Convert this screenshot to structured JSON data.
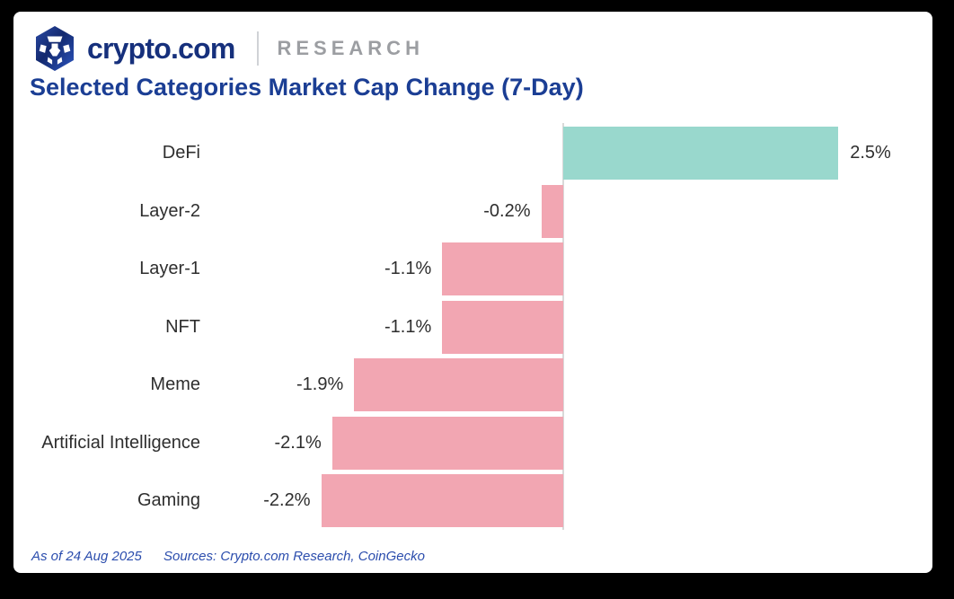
{
  "header": {
    "wordmark": "crypto.com",
    "division": "RESEARCH"
  },
  "title": "Selected Categories Market Cap Change (7-Day)",
  "footer": {
    "as_of": "As of 24 Aug 2025",
    "sources": "Sources: Crypto.com Research, CoinGecko"
  },
  "colors": {
    "frame_black": "#000000",
    "card_white": "#ffffff",
    "brand_navy": "#16307c",
    "title_blue": "#1b3e94",
    "research_gray": "#9c9ea2",
    "footer_blue": "#2b4dad",
    "axis_gray": "#d9d9d9",
    "label_text": "#2e2e2e"
  },
  "chart_data": {
    "type": "bar",
    "orientation": "horizontal",
    "title": "Selected Categories Market Cap Change (7-Day)",
    "categories": [
      "DeFi",
      "Layer-2",
      "Layer-1",
      "NFT",
      "Meme",
      "Artificial Intelligence",
      "Gaming"
    ],
    "values": [
      2.5,
      -0.2,
      -1.1,
      -1.1,
      -1.9,
      -2.1,
      -2.2
    ],
    "value_labels": [
      "2.5%",
      "-0.2%",
      "-1.1%",
      "-1.1%",
      "-1.9%",
      "-2.1%",
      "-2.2%"
    ],
    "unit": "%",
    "xlim": [
      -2.6,
      3.5
    ],
    "grid": false,
    "legend": false,
    "positive_color": "#99d8cd",
    "negative_color": "#f2a6b2"
  }
}
